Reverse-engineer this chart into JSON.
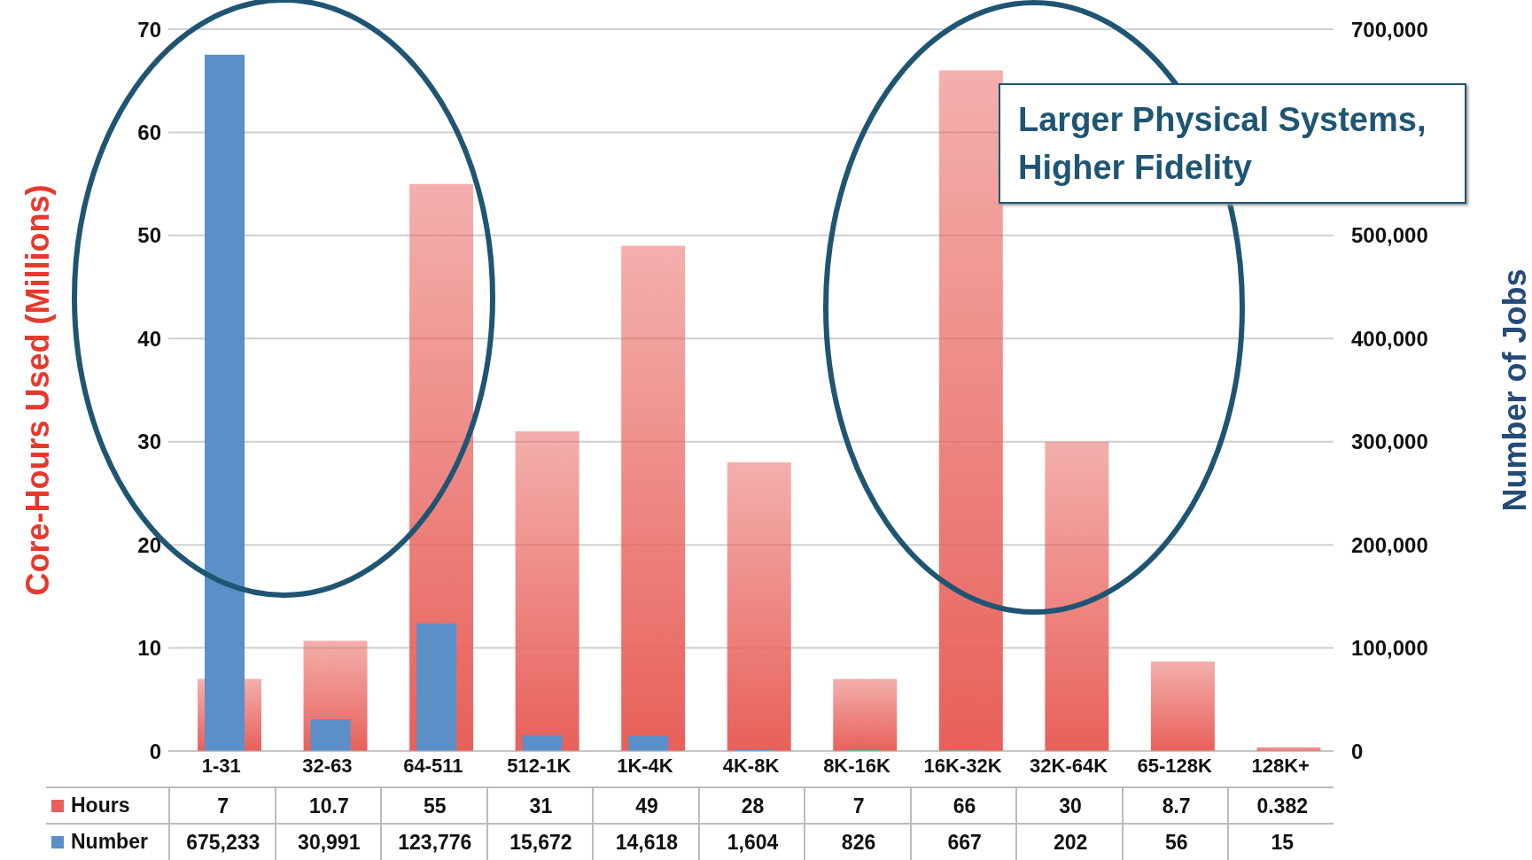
{
  "chart_data": {
    "type": "bar",
    "categories": [
      "1-31",
      "32-63",
      "64-511",
      "512-1K",
      "1K-4K",
      "4K-8K",
      "8K-16K",
      "16K-32K",
      "32K-64K",
      "65-128K",
      "128K+"
    ],
    "series": [
      {
        "name": "Hours",
        "color": "#e8605a",
        "values": [
          7,
          10.7,
          55,
          31,
          49,
          28,
          7,
          66,
          30,
          8.7,
          0.382
        ],
        "value_labels": [
          "7",
          "10.7",
          "55",
          "31",
          "49",
          "28",
          "7",
          "66",
          "30",
          "8.7",
          "0.382"
        ]
      },
      {
        "name": "Number",
        "color": "#5b8fc7",
        "axis": "y2",
        "values": [
          675233,
          30991,
          123776,
          15672,
          14618,
          1604,
          826,
          667,
          202,
          56,
          15
        ],
        "value_labels": [
          "675,233",
          "30,991",
          "123,776",
          "15,672",
          "14,618",
          "1,604",
          "826",
          "667",
          "202",
          "56",
          "15"
        ]
      }
    ],
    "ylabel": "Core-Hours Used (Millions)",
    "y2label": "Number of Jobs",
    "ylim": [
      0,
      70
    ],
    "yticks": [
      0,
      10,
      20,
      30,
      40,
      50,
      60,
      70
    ],
    "y2lim": [
      0,
      700000
    ],
    "y2ticks": [
      {
        "value": 0,
        "label": "0"
      },
      {
        "value": 100000,
        "label": "100,000"
      },
      {
        "value": 200000,
        "label": "200,000"
      },
      {
        "value": 300000,
        "label": "300,000"
      },
      {
        "value": 400000,
        "label": "400,000"
      },
      {
        "value": 500000,
        "label": "500,000"
      },
      {
        "value": 600000,
        "label": null
      },
      {
        "value": 700000,
        "label": "700,000"
      }
    ],
    "grid": "y",
    "legend": "bottom left",
    "annotations": [
      "Larger Physical Systems, Higher Fidelity"
    ]
  }
}
